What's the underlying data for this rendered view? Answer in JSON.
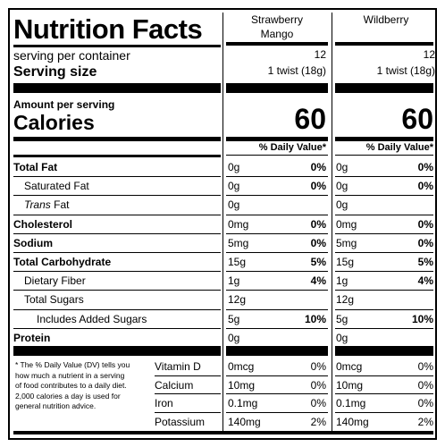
{
  "title": "Nutrition Facts",
  "columns": [
    {
      "name_line1": "Strawberry",
      "name_line2": "Mango",
      "servings": "12",
      "serving_size": "1 twist (18g)",
      "calories": "60"
    },
    {
      "name_line1": "Wildberry",
      "name_line2": "",
      "servings": "12",
      "serving_size": "1 twist (18g)",
      "calories": "60"
    }
  ],
  "labels": {
    "servings_per_container": "serving per container",
    "serving_size": "Serving size",
    "amount_per_serving": "Amount per serving",
    "calories": "Calories",
    "daily_value": "% Daily Value*"
  },
  "nutrients": [
    {
      "label": "Total Fat",
      "style": "bold",
      "col1_amount": "0g",
      "col1_dv": "0%",
      "col2_amount": "0g",
      "col2_dv": "0%"
    },
    {
      "label": "Saturated Fat",
      "style": "indent",
      "col1_amount": "0g",
      "col1_dv": "0%",
      "col2_amount": "0g",
      "col2_dv": "0%"
    },
    {
      "label_prefix": "Trans",
      "label": " Fat",
      "style": "indent-italic",
      "col1_amount": "0g",
      "col1_dv": "",
      "col2_amount": "0g",
      "col2_dv": ""
    },
    {
      "label": "Cholesterol",
      "style": "bold",
      "col1_amount": "0mg",
      "col1_dv": "0%",
      "col2_amount": "0mg",
      "col2_dv": "0%"
    },
    {
      "label": "Sodium",
      "style": "bold",
      "col1_amount": "5mg",
      "col1_dv": "0%",
      "col2_amount": "5mg",
      "col2_dv": "0%"
    },
    {
      "label": "Total Carbohydrate",
      "style": "bold",
      "col1_amount": "15g",
      "col1_dv": "5%",
      "col2_amount": "15g",
      "col2_dv": "5%"
    },
    {
      "label": "Dietary Fiber",
      "style": "indent",
      "col1_amount": "1g",
      "col1_dv": "4%",
      "col2_amount": "1g",
      "col2_dv": "4%"
    },
    {
      "label": "Total Sugars",
      "style": "indent",
      "col1_amount": "12g",
      "col1_dv": "",
      "col2_amount": "12g",
      "col2_dv": ""
    },
    {
      "label": "Includes Added Sugars",
      "style": "indent2",
      "col1_amount": "5g",
      "col1_dv": "10%",
      "col2_amount": "5g",
      "col2_dv": "10%"
    },
    {
      "label": "Protein",
      "style": "bold",
      "col1_amount": "0g",
      "col1_dv": "",
      "col2_amount": "0g",
      "col2_dv": ""
    }
  ],
  "footnote": [
    "* The % Daily Value (DV) tells you",
    "how much a nutrient in a serving",
    "of food contributes to a daily diet.",
    "2,000 calories a day is used for",
    "general nutrition advice."
  ],
  "vitamins": [
    {
      "label": "Vitamin D",
      "col1_amount": "0mcg",
      "col1_dv": "0%",
      "col2_amount": "0mcg",
      "col2_dv": "0%"
    },
    {
      "label": "Calcium",
      "col1_amount": "10mg",
      "col1_dv": "0%",
      "col2_amount": "10mg",
      "col2_dv": "0%"
    },
    {
      "label": "Iron",
      "col1_amount": "0.1mg",
      "col1_dv": "0%",
      "col2_amount": "0.1mg",
      "col2_dv": "0%"
    },
    {
      "label": "Potassium",
      "col1_amount": "140mg",
      "col1_dv": "2%",
      "col2_amount": "140mg",
      "col2_dv": "2%"
    }
  ]
}
